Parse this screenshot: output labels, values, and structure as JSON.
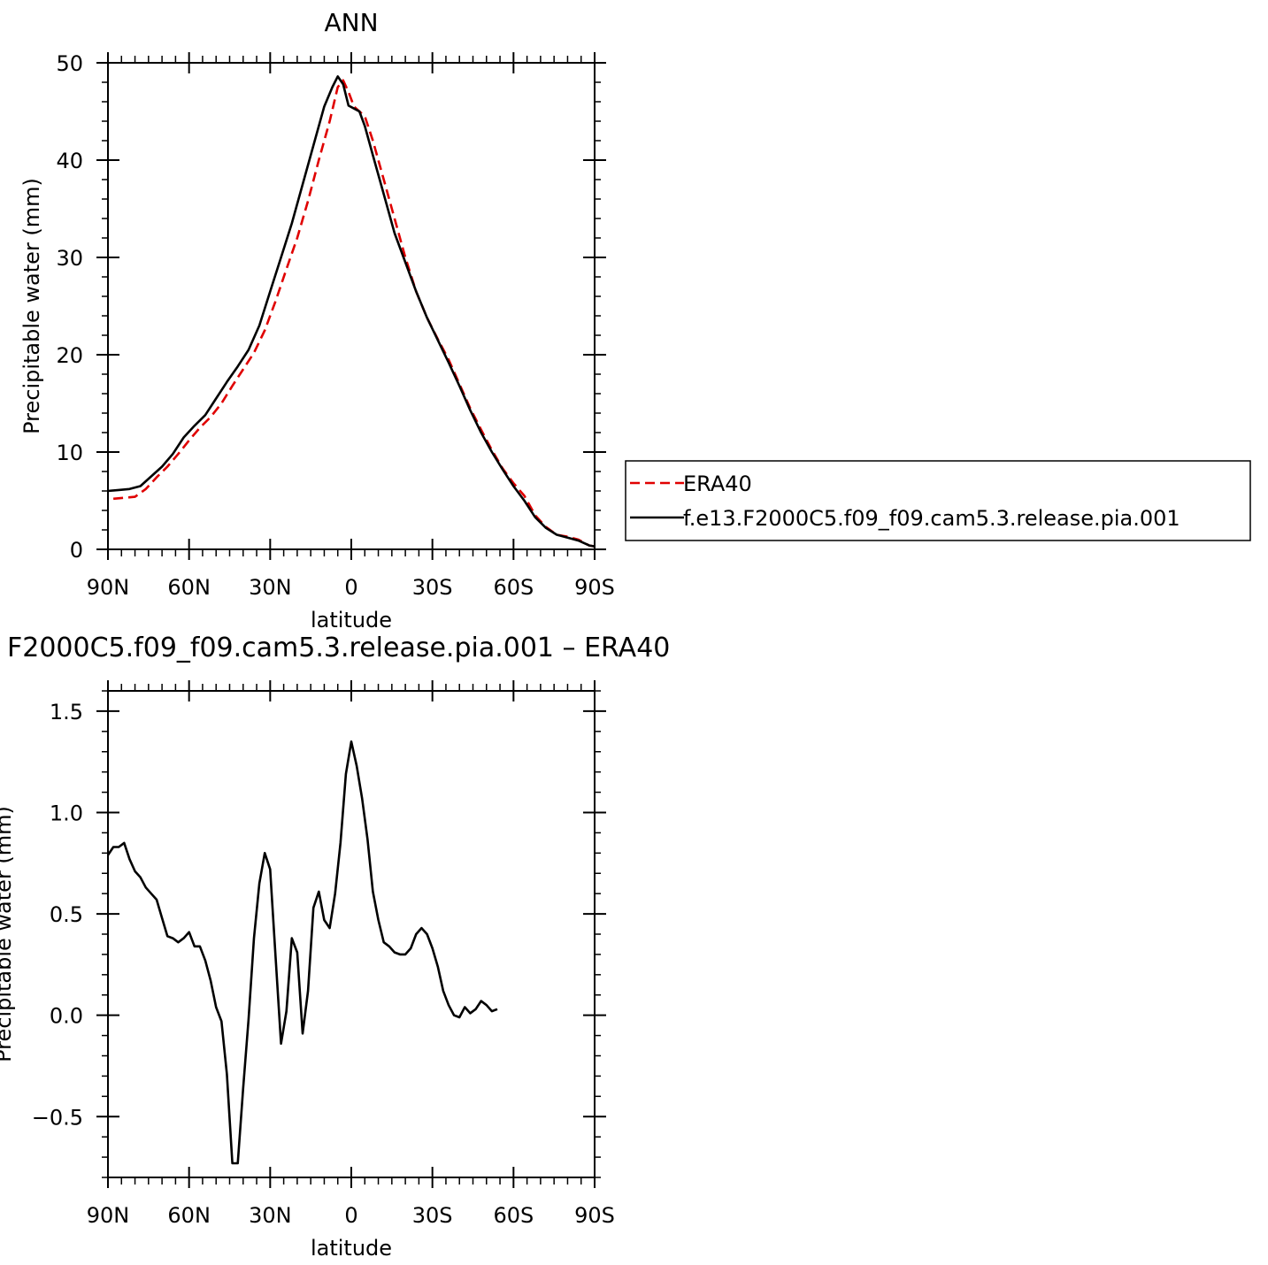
{
  "chart_data": [
    {
      "type": "line",
      "title": "ANN",
      "xlabel": "latitude",
      "ylabel": "Precipitable water (mm)",
      "xlim": [
        90,
        -90
      ],
      "ylim": [
        0,
        50
      ],
      "xticks": [
        90,
        60,
        30,
        0,
        -30,
        -60,
        -90
      ],
      "xtick_labels": [
        "90N",
        "60N",
        "30N",
        "0",
        "30S",
        "60S",
        "90S"
      ],
      "yticks": [
        0,
        10,
        20,
        30,
        40,
        50
      ],
      "ytick_labels": [
        "0",
        "10",
        "20",
        "30",
        "40",
        "50"
      ],
      "legend_position": "right",
      "series": [
        {
          "name": "ERA40",
          "color": "#e00000",
          "dash": "dashed",
          "points": [
            [
              88,
              5.2
            ],
            [
              84,
              5.3
            ],
            [
              80,
              5.4
            ],
            [
              76,
              6.2
            ],
            [
              72,
              7.4
            ],
            [
              68,
              8.5
            ],
            [
              64,
              9.8
            ],
            [
              60,
              11.2
            ],
            [
              56,
              12.5
            ],
            [
              52,
              13.6
            ],
            [
              48,
              15.0
            ],
            [
              44,
              16.8
            ],
            [
              40,
              18.5
            ],
            [
              36,
              20.2
            ],
            [
              32,
              22.5
            ],
            [
              28,
              25.5
            ],
            [
              24,
              28.8
            ],
            [
              20,
              32.0
            ],
            [
              16,
              35.8
            ],
            [
              12,
              40.0
            ],
            [
              8,
              44.0
            ],
            [
              5,
              47.5
            ],
            [
              3,
              48.2
            ],
            [
              1,
              47.0
            ],
            [
              -1,
              45.5
            ],
            [
              -3,
              45.0
            ],
            [
              -5,
              44.5
            ],
            [
              -8,
              42.0
            ],
            [
              -12,
              38.0
            ],
            [
              -16,
              34.0
            ],
            [
              -20,
              30.0
            ],
            [
              -24,
              26.5
            ],
            [
              -28,
              23.8
            ],
            [
              -32,
              21.6
            ],
            [
              -36,
              19.5
            ],
            [
              -40,
              17.0
            ],
            [
              -44,
              14.5
            ],
            [
              -48,
              12.3
            ],
            [
              -52,
              10.2
            ],
            [
              -56,
              8.3
            ],
            [
              -60,
              6.8
            ],
            [
              -64,
              5.5
            ],
            [
              -68,
              3.5
            ],
            [
              -72,
              2.3
            ],
            [
              -76,
              1.5
            ],
            [
              -80,
              1.3
            ],
            [
              -84,
              1.0
            ],
            [
              -88,
              0.4
            ],
            [
              -90,
              0.3
            ]
          ]
        },
        {
          "name": "f.e13.F2000C5.f09_f09.cam5.3.release.pia.001",
          "color": "#000000",
          "dash": "solid",
          "points": [
            [
              90,
              6.0
            ],
            [
              86,
              6.1
            ],
            [
              82,
              6.2
            ],
            [
              78,
              6.5
            ],
            [
              74,
              7.5
            ],
            [
              70,
              8.5
            ],
            [
              66,
              9.8
            ],
            [
              62,
              11.5
            ],
            [
              58,
              12.7
            ],
            [
              54,
              13.8
            ],
            [
              50,
              15.5
            ],
            [
              46,
              17.2
            ],
            [
              42,
              18.8
            ],
            [
              38,
              20.5
            ],
            [
              34,
              23.0
            ],
            [
              30,
              26.5
            ],
            [
              26,
              30.0
            ],
            [
              22,
              33.5
            ],
            [
              18,
              37.5
            ],
            [
              14,
              41.5
            ],
            [
              10,
              45.5
            ],
            [
              7,
              47.5
            ],
            [
              5,
              48.6
            ],
            [
              3,
              47.8
            ],
            [
              1,
              45.6
            ],
            [
              -1,
              45.3
            ],
            [
              -3,
              45.0
            ],
            [
              -5,
              43.5
            ],
            [
              -8,
              40.5
            ],
            [
              -12,
              36.5
            ],
            [
              -16,
              32.5
            ],
            [
              -20,
              29.5
            ],
            [
              -24,
              26.5
            ],
            [
              -28,
              23.8
            ],
            [
              -32,
              21.5
            ],
            [
              -36,
              19.2
            ],
            [
              -40,
              16.8
            ],
            [
              -44,
              14.3
            ],
            [
              -48,
              12.0
            ],
            [
              -52,
              10.0
            ],
            [
              -56,
              8.2
            ],
            [
              -60,
              6.5
            ],
            [
              -64,
              5.0
            ],
            [
              -68,
              3.3
            ],
            [
              -72,
              2.2
            ],
            [
              -76,
              1.5
            ],
            [
              -80,
              1.2
            ],
            [
              -84,
              0.9
            ],
            [
              -88,
              0.4
            ],
            [
              -90,
              0.3
            ]
          ]
        }
      ]
    },
    {
      "type": "line",
      "title": "F2000C5.f09_f09.cam5.3.release.pia.001 – ERA40",
      "xlabel": "latitude",
      "ylabel": "Precipitable water (mm)",
      "xlim": [
        90,
        -90
      ],
      "ylim": [
        -0.8,
        1.6
      ],
      "xticks": [
        90,
        60,
        30,
        0,
        -30,
        -60,
        -90
      ],
      "xtick_labels": [
        "90N",
        "60N",
        "30N",
        "0",
        "30S",
        "60S",
        "90S"
      ],
      "yticks": [
        -0.5,
        0.0,
        0.5,
        1.0,
        1.5
      ],
      "ytick_labels": [
        "−0.5",
        "0.0",
        "0.5",
        "1.0",
        "1.5"
      ],
      "series": [
        {
          "color": "#000000",
          "dash": "solid",
          "points": [
            [
              90,
              0.79
            ],
            [
              88,
              0.83
            ],
            [
              86,
              0.83
            ],
            [
              84,
              0.85
            ],
            [
              82,
              0.77
            ],
            [
              80,
              0.71
            ],
            [
              78,
              0.68
            ],
            [
              76,
              0.63
            ],
            [
              74,
              0.6
            ],
            [
              72,
              0.57
            ],
            [
              70,
              0.48
            ],
            [
              68,
              0.39
            ],
            [
              66,
              0.38
            ],
            [
              64,
              0.36
            ],
            [
              62,
              0.38
            ],
            [
              60,
              0.41
            ],
            [
              58,
              0.34
            ],
            [
              56,
              0.34
            ],
            [
              54,
              0.27
            ],
            [
              52,
              0.17
            ],
            [
              50,
              0.04
            ],
            [
              48,
              -0.03
            ],
            [
              46,
              -0.29
            ],
            [
              44,
              -0.73
            ],
            [
              42,
              -0.73
            ],
            [
              40,
              -0.36
            ],
            [
              38,
              -0.02
            ],
            [
              36,
              0.38
            ],
            [
              34,
              0.65
            ],
            [
              32,
              0.8
            ],
            [
              30,
              0.72
            ],
            [
              28,
              0.29
            ],
            [
              26,
              -0.14
            ],
            [
              24,
              0.02
            ],
            [
              22,
              0.38
            ],
            [
              20,
              0.31
            ],
            [
              18,
              -0.09
            ],
            [
              16,
              0.12
            ],
            [
              14,
              0.53
            ],
            [
              12,
              0.61
            ],
            [
              10,
              0.47
            ],
            [
              8,
              0.43
            ],
            [
              6,
              0.6
            ],
            [
              4,
              0.85
            ],
            [
              2,
              1.19
            ],
            [
              0,
              1.35
            ],
            [
              -2,
              1.23
            ],
            [
              -4,
              1.07
            ],
            [
              -6,
              0.87
            ],
            [
              -8,
              0.61
            ],
            [
              -10,
              0.47
            ],
            [
              -12,
              0.36
            ],
            [
              -14,
              0.34
            ],
            [
              -16,
              0.31
            ],
            [
              -18,
              0.3
            ],
            [
              -20,
              0.3
            ],
            [
              -22,
              0.33
            ],
            [
              -24,
              0.4
            ],
            [
              -26,
              0.43
            ],
            [
              -28,
              0.4
            ],
            [
              -30,
              0.33
            ],
            [
              -32,
              0.24
            ],
            [
              -34,
              0.12
            ],
            [
              -36,
              0.05
            ],
            [
              -38,
              0.0
            ],
            [
              -40,
              -0.01
            ],
            [
              -42,
              0.04
            ],
            [
              -44,
              0.01
            ],
            [
              -46,
              0.03
            ],
            [
              -48,
              0.07
            ],
            [
              -50,
              0.05
            ],
            [
              -52,
              0.02
            ],
            [
              -54,
              0.03
            ]
          ]
        }
      ]
    }
  ]
}
